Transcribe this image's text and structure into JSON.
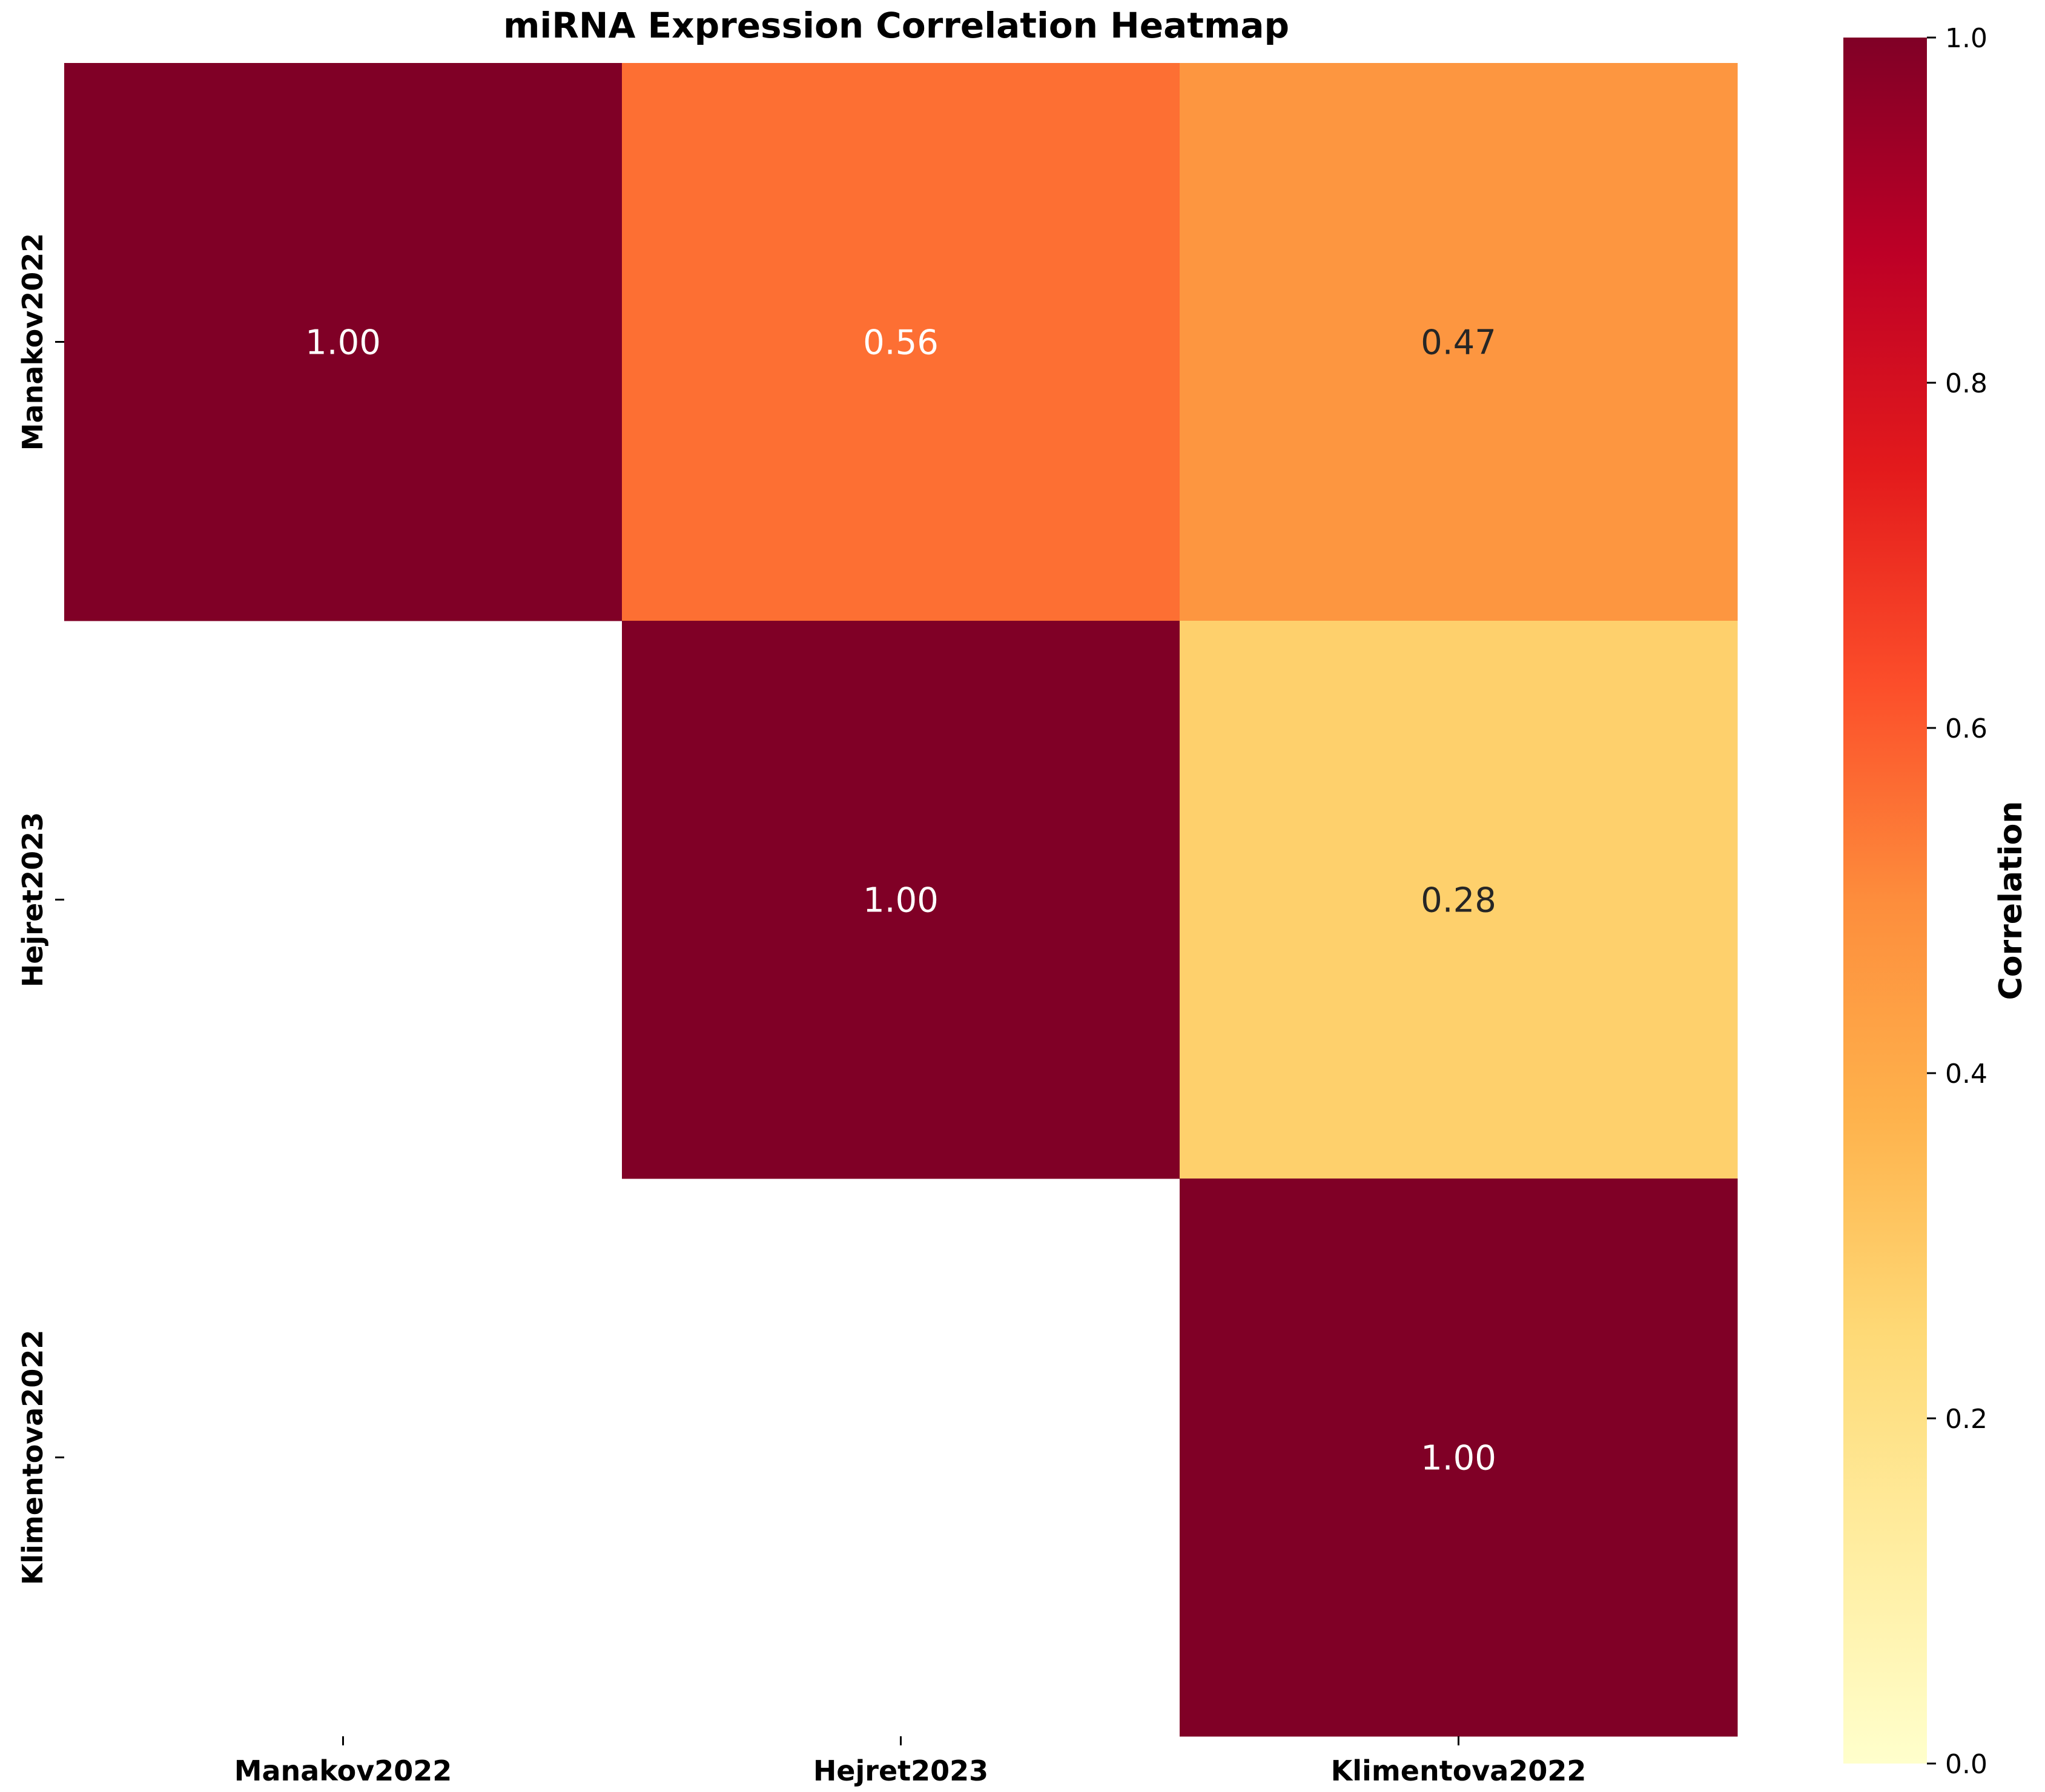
{
  "chart_data": {
    "type": "heatmap",
    "title": "miRNA Expression Correlation Heatmap",
    "row_labels": [
      "Manakov2022",
      "Hejret2023",
      "Klimentova2022"
    ],
    "col_labels": [
      "Manakov2022",
      "Hejret2023",
      "Klimentova2022"
    ],
    "matrix": [
      [
        1.0,
        0.56,
        0.47
      ],
      [
        null,
        1.0,
        0.28
      ],
      [
        null,
        null,
        1.0
      ]
    ],
    "cell_labels": [
      [
        "1.00",
        "0.56",
        "0.47"
      ],
      [
        "",
        "1.00",
        "0.28"
      ],
      [
        "",
        "",
        "1.00"
      ]
    ],
    "colorbar": {
      "label": "Correlation",
      "range": [
        0.0,
        1.0
      ],
      "ticks": [
        0.0,
        0.2,
        0.4,
        0.6,
        0.8,
        1.0
      ],
      "tick_labels": [
        "0.0",
        "0.2",
        "0.4",
        "0.6",
        "0.8",
        "1.0"
      ]
    },
    "colormap": [
      "#ffffcc",
      "#ffeda0",
      "#fed976",
      "#feb24c",
      "#fd8d3c",
      "#fc4e2a",
      "#e31a1c",
      "#bd0026",
      "#800026"
    ],
    "mask": "lower-triangle"
  }
}
